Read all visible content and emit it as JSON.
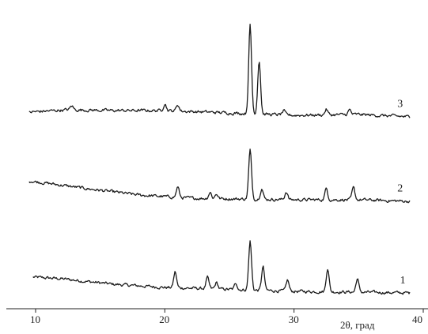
{
  "chart_data": {
    "type": "line",
    "title": "",
    "xlabel": "2θ, град",
    "ylabel": "",
    "xlim": [
      9,
      40
    ],
    "x_ticks": [
      10,
      20,
      30,
      40
    ],
    "x_tick_labels": [
      "10",
      "20",
      "30",
      "40"
    ],
    "grid": false,
    "series": [
      {
        "name": "1",
        "offset": 0,
        "baseline": [
          [
            9.8,
            20
          ],
          [
            12,
            18
          ],
          [
            16,
            11
          ],
          [
            20,
            7
          ],
          [
            24,
            5
          ],
          [
            30,
            2
          ],
          [
            35,
            1
          ],
          [
            39,
            0
          ]
        ],
        "peaks": [
          [
            20.8,
            20
          ],
          [
            23.3,
            14
          ],
          [
            24.0,
            8
          ],
          [
            25.5,
            8
          ],
          [
            26.6,
            62
          ],
          [
            27.6,
            30
          ],
          [
            29.5,
            14
          ],
          [
            32.6,
            30
          ],
          [
            34.9,
            17
          ]
        ],
        "label_x": 38.2
      },
      {
        "name": "2",
        "offset": 118,
        "baseline": [
          [
            9.5,
            24
          ],
          [
            14,
            14
          ],
          [
            18,
            6
          ],
          [
            22,
            2
          ],
          [
            26,
            1
          ],
          [
            30,
            0
          ],
          [
            35,
            0
          ],
          [
            39,
            -2
          ]
        ],
        "peaks": [
          [
            21.0,
            13
          ],
          [
            23.5,
            8
          ],
          [
            24.0,
            6
          ],
          [
            26.6,
            62
          ],
          [
            27.5,
            14
          ],
          [
            29.4,
            10
          ],
          [
            32.5,
            14
          ],
          [
            34.6,
            15
          ]
        ],
        "label_x": 38.0
      },
      {
        "name": "3",
        "offset": 228,
        "baseline": [
          [
            9.5,
            1
          ],
          [
            12.5,
            4
          ],
          [
            16,
            3
          ],
          [
            20,
            3
          ],
          [
            25,
            0
          ],
          [
            30,
            -3
          ],
          [
            35,
            -2
          ],
          [
            39,
            -5
          ]
        ],
        "peaks": [
          [
            12.8,
            5
          ],
          [
            20.0,
            9
          ],
          [
            21.0,
            8
          ],
          [
            26.6,
            112
          ],
          [
            27.3,
            68
          ],
          [
            29.2,
            5
          ],
          [
            32.5,
            7
          ],
          [
            34.3,
            6
          ]
        ],
        "label_x": 38.0
      }
    ]
  }
}
